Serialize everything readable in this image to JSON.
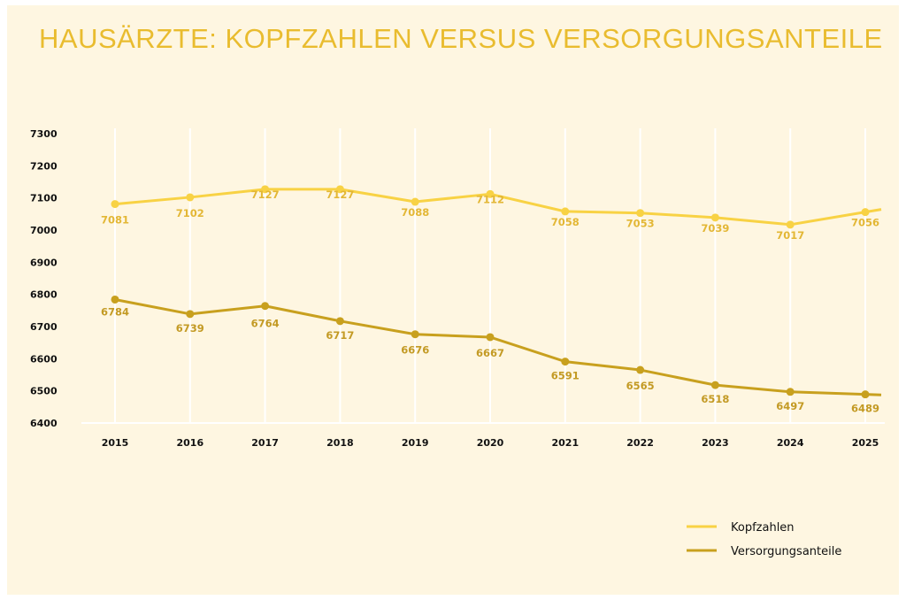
{
  "chart_data": {
    "type": "line",
    "title": "HAUSÄRZTE: KOPFZAHLEN VERSUS VERSORGUNGSANTEILE",
    "xlabel": "",
    "ylabel": "",
    "x": [
      "2015",
      "2016",
      "2017",
      "2018",
      "2019",
      "2020",
      "2021",
      "2022",
      "2023",
      "2024",
      "2025"
    ],
    "ylim": [
      6400,
      7300
    ],
    "yticks": [
      7300,
      7200,
      7100,
      7000,
      6900,
      6800,
      6700,
      6600,
      6500,
      6400
    ],
    "grid": "vertical",
    "legend_position": "bottom-right",
    "series": [
      {
        "name": "Kopfzahlen",
        "color": "#f8d244",
        "label_color": "#e3b735",
        "values": [
          7081,
          7102,
          7127,
          7127,
          7088,
          7112,
          7058,
          7053,
          7039,
          7017,
          7056
        ]
      },
      {
        "name": "Versorgungsanteile",
        "color": "#c8a01e",
        "label_color": "#c39a24",
        "values": [
          6784,
          6739,
          6764,
          6717,
          6676,
          6667,
          6591,
          6565,
          6518,
          6497,
          6489
        ]
      }
    ]
  }
}
